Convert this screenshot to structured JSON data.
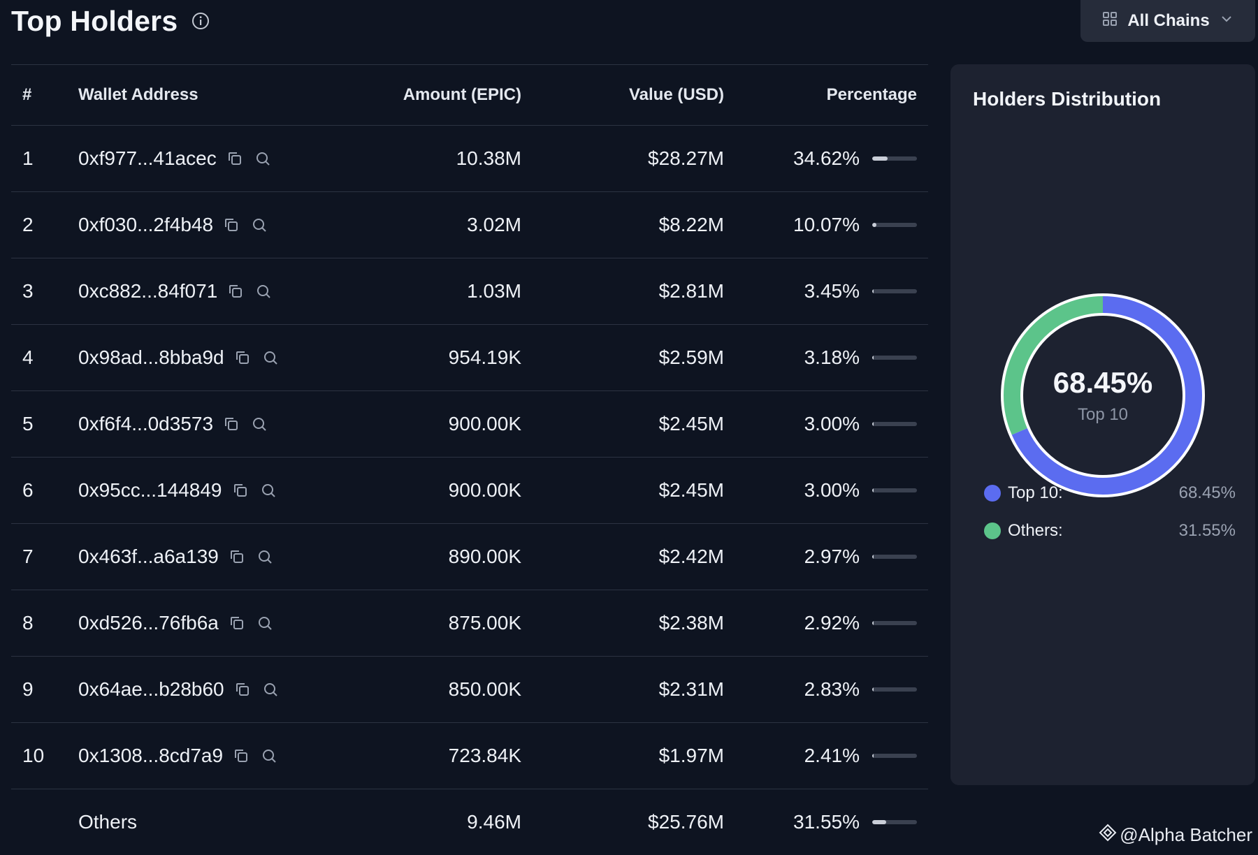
{
  "header": {
    "title": "Top Holders",
    "info_icon": "info-icon"
  },
  "chain_filter": {
    "label": "All Chains",
    "icon": "grid-icon",
    "chevron": "chevron-down-icon"
  },
  "table": {
    "columns": [
      "#",
      "Wallet Address",
      "Amount (EPIC)",
      "Value (USD)",
      "Percentage"
    ],
    "rows": [
      {
        "rank": "1",
        "address": "0xf977...41acec",
        "amount": "10.38M",
        "value": "$28.27M",
        "percentage": "34.62%",
        "pct": 34.62
      },
      {
        "rank": "2",
        "address": "0xf030...2f4b48",
        "amount": "3.02M",
        "value": "$8.22M",
        "percentage": "10.07%",
        "pct": 10.07
      },
      {
        "rank": "3",
        "address": "0xc882...84f071",
        "amount": "1.03M",
        "value": "$2.81M",
        "percentage": "3.45%",
        "pct": 3.45
      },
      {
        "rank": "4",
        "address": "0x98ad...8bba9d",
        "amount": "954.19K",
        "value": "$2.59M",
        "percentage": "3.18%",
        "pct": 3.18
      },
      {
        "rank": "5",
        "address": "0xf6f4...0d3573",
        "amount": "900.00K",
        "value": "$2.45M",
        "percentage": "3.00%",
        "pct": 3.0
      },
      {
        "rank": "6",
        "address": "0x95cc...144849",
        "amount": "900.00K",
        "value": "$2.45M",
        "percentage": "3.00%",
        "pct": 3.0
      },
      {
        "rank": "7",
        "address": "0x463f...a6a139",
        "amount": "890.00K",
        "value": "$2.42M",
        "percentage": "2.97%",
        "pct": 2.97
      },
      {
        "rank": "8",
        "address": "0xd526...76fb6a",
        "amount": "875.00K",
        "value": "$2.38M",
        "percentage": "2.92%",
        "pct": 2.92
      },
      {
        "rank": "9",
        "address": "0x64ae...b28b60",
        "amount": "850.00K",
        "value": "$2.31M",
        "percentage": "2.83%",
        "pct": 2.83
      },
      {
        "rank": "10",
        "address": "0x1308...8cd7a9",
        "amount": "723.84K",
        "value": "$1.97M",
        "percentage": "2.41%",
        "pct": 2.41
      }
    ],
    "others": {
      "label": "Others",
      "amount": "9.46M",
      "value": "$25.76M",
      "percentage": "31.55%",
      "pct": 31.55
    }
  },
  "distribution": {
    "title": "Holders Distribution",
    "center_value": "68.45%",
    "center_label": "Top 10",
    "legend": [
      {
        "name": "Top 10:",
        "value": "68.45%",
        "color": "#5b6cf0",
        "pct": 68.45
      },
      {
        "name": "Others:",
        "value": "31.55%",
        "color": "#5cc48a",
        "pct": 31.55
      }
    ]
  },
  "watermark": {
    "text": "@Alpha Batcher",
    "icon": "binance-diamond-icon"
  }
}
